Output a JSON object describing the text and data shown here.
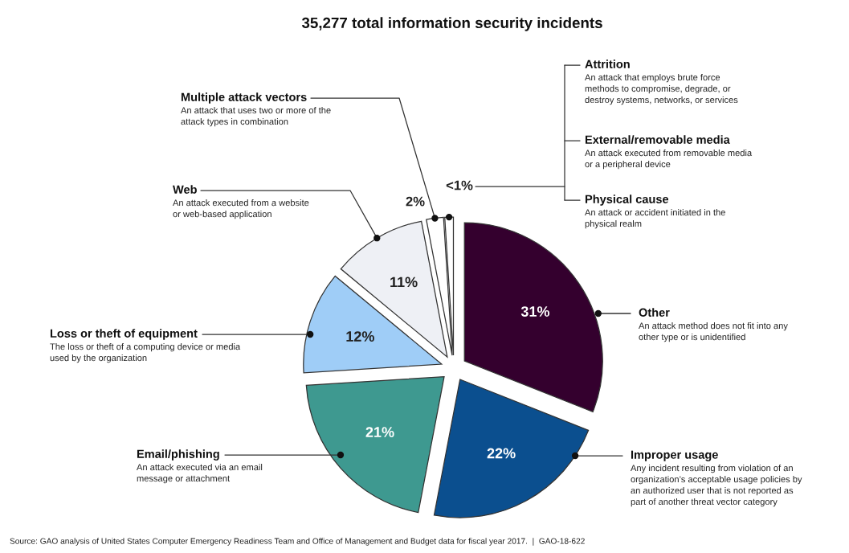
{
  "chart_data": {
    "type": "pie",
    "title": "35,277 total information security incidents",
    "categories": [
      "Other",
      "Improper usage",
      "Email/phishing",
      "Loss or theft of equipment",
      "Web",
      "Multiple attack vectors",
      null
    ],
    "values": [
      31,
      22,
      21,
      12,
      11,
      2,
      1
    ],
    "colors": [
      "#34002e",
      "#0b4f8f",
      "#3e9990",
      "#9fcdf7",
      "#eef0f5",
      "#ffffff",
      "#ffffff"
    ],
    "value_labels": [
      "31%",
      "22%",
      "21%",
      "12%",
      "11%",
      "2%",
      "<1%"
    ],
    "annotations": [
      "An attack method does not fit into any\nother type or is unidentified",
      "Any incident resulting from violation of an\norganization’s acceptable usage policies by\nan authorized user that is not reported as\npart of another threat vector category",
      "An attack executed via an email\nmessage or attachment",
      "The loss or theft of a computing device or media\nused by the organization",
      "An attack executed from a website\nor web-based application",
      "An attack that uses two or more of the\nattack types in combination",
      "Attrition",
      "An attack that employs brute force\nmethods to compromise, degrade, or\ndestroy systems, networks, or services",
      "External/removable media",
      "An attack executed from removable media\nor a peripheral device",
      "Physical cause",
      "An attack or accident initiated in the\nphysical realm",
      "Source: GAO analysis of United States Computer Emergency Readiness Team and Office of Management and Budget data for fiscal year 2017.  |  GAO-18-622"
    ]
  }
}
